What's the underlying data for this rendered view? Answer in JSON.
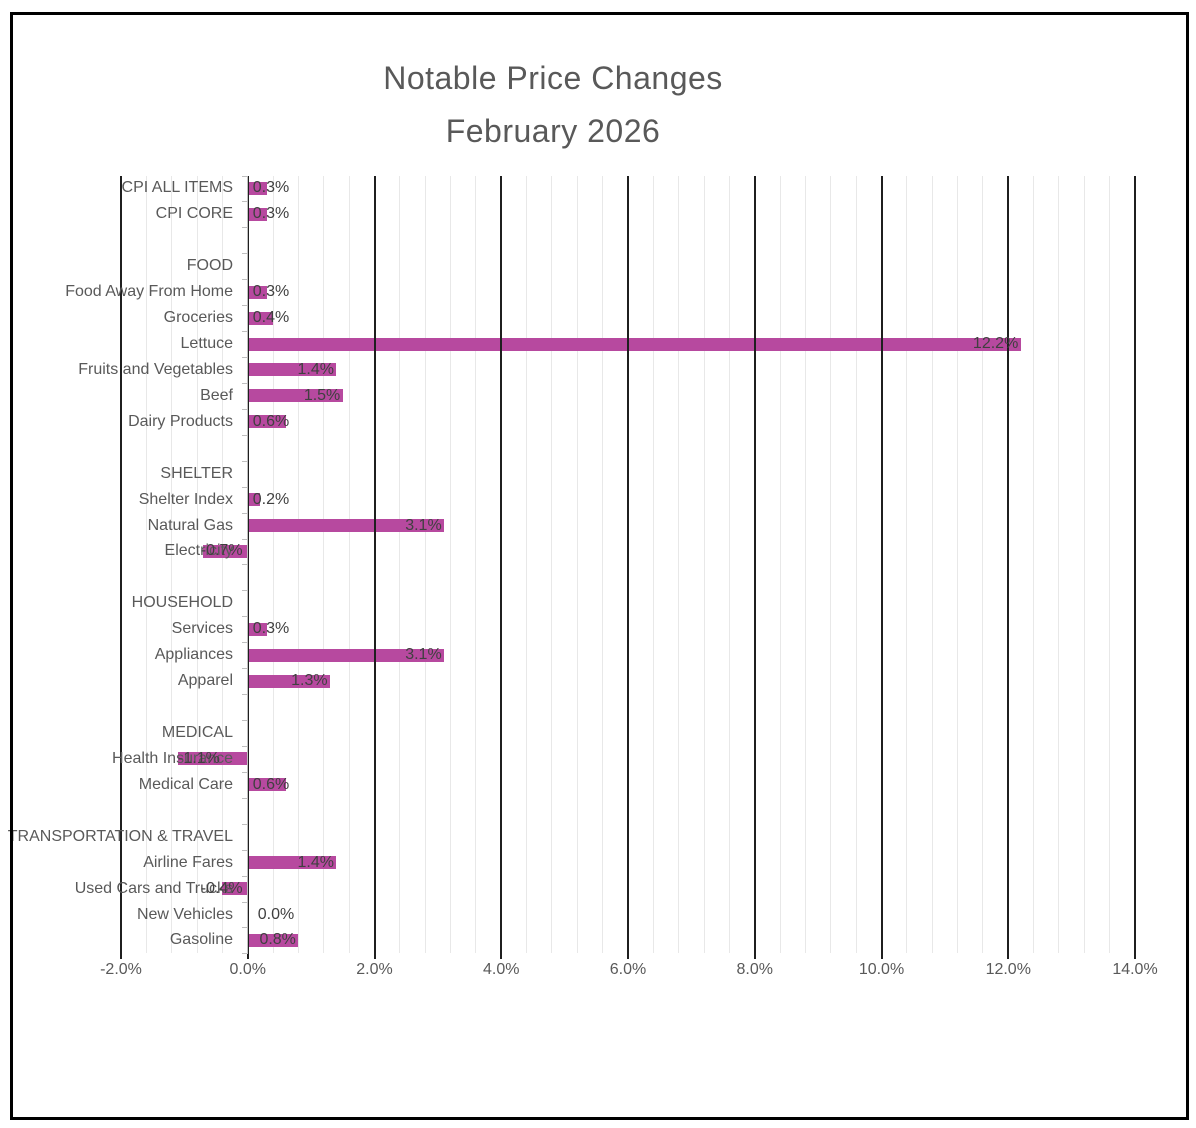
{
  "title": {
    "line1": "Notable Price Changes",
    "line2": "February 2026"
  },
  "colors": {
    "bar": "#b7499f",
    "title_text": "#595959",
    "category_text": "#595959",
    "value_text": "#404040",
    "axis_tick_text": "#595959",
    "major_gridline": "#1f1f1f",
    "minor_gridline": "#e8e8e8",
    "category_axis": "#bfbfbf",
    "frame_border": "#000000"
  },
  "chart_data": {
    "type": "bar",
    "orientation": "horizontal",
    "title": "Notable Price Changes February 2026",
    "xlabel": "",
    "ylabel": "",
    "xlim": [
      -2.0,
      14.0
    ],
    "x_major_unit": 2.0,
    "x_minor_unit": 0.4,
    "grid": "major-and-minor-vertical",
    "legend": "none",
    "x_major_tick_labels": [
      "-2.0%",
      "0.0%",
      "2.0%",
      "4.0%",
      "6.0%",
      "8.0%",
      "10.0%",
      "12.0%",
      "14.0%"
    ],
    "rows": [
      {
        "kind": "item",
        "label": "CPI ALL ITEMS",
        "value": 0.3,
        "display": "0.3%"
      },
      {
        "kind": "item",
        "label": "CPI CORE",
        "value": 0.3,
        "display": "0.3%"
      },
      {
        "kind": "spacer",
        "label": ""
      },
      {
        "kind": "header",
        "label": "FOOD"
      },
      {
        "kind": "item",
        "label": "Food Away From Home",
        "value": 0.3,
        "display": "0.3%"
      },
      {
        "kind": "item",
        "label": "Groceries",
        "value": 0.4,
        "display": "0.4%"
      },
      {
        "kind": "item",
        "label": "Lettuce",
        "value": 12.2,
        "display": "12.2%"
      },
      {
        "kind": "item",
        "label": "Fruits and Vegetables",
        "value": 1.4,
        "display": "1.4%"
      },
      {
        "kind": "item",
        "label": "Beef",
        "value": 1.5,
        "display": "1.5%"
      },
      {
        "kind": "item",
        "label": "Dairy Products",
        "value": 0.6,
        "display": "0.6%"
      },
      {
        "kind": "spacer",
        "label": ""
      },
      {
        "kind": "header",
        "label": "SHELTER"
      },
      {
        "kind": "item",
        "label": "Shelter Index",
        "value": 0.2,
        "display": "0.2%"
      },
      {
        "kind": "item",
        "label": "Natural Gas",
        "value": 3.1,
        "display": "3.1%"
      },
      {
        "kind": "item",
        "label": "Electricity",
        "value": -0.7,
        "display": "-0.7%"
      },
      {
        "kind": "spacer",
        "label": ""
      },
      {
        "kind": "header",
        "label": "HOUSEHOLD"
      },
      {
        "kind": "item",
        "label": "Services",
        "value": 0.3,
        "display": "0.3%"
      },
      {
        "kind": "item",
        "label": "Appliances",
        "value": 3.1,
        "display": "3.1%"
      },
      {
        "kind": "item",
        "label": "Apparel",
        "value": 1.3,
        "display": "1.3%"
      },
      {
        "kind": "spacer",
        "label": ""
      },
      {
        "kind": "header",
        "label": "MEDICAL"
      },
      {
        "kind": "item",
        "label": "Health Insurance",
        "value": -1.1,
        "display": "-1.1%"
      },
      {
        "kind": "item",
        "label": "Medical Care",
        "value": 0.6,
        "display": "0.6%"
      },
      {
        "kind": "spacer",
        "label": ""
      },
      {
        "kind": "header",
        "label": "TRANSPORTATION & TRAVEL"
      },
      {
        "kind": "item",
        "label": "Airline Fares",
        "value": 1.4,
        "display": "1.4%"
      },
      {
        "kind": "item",
        "label": "Used Cars and Trucks",
        "value": -0.4,
        "display": "-0.4%"
      },
      {
        "kind": "item",
        "label": "New Vehicles",
        "value": 0.0,
        "display": "0.0%"
      },
      {
        "kind": "item",
        "label": "Gasoline",
        "value": 0.8,
        "display": "0.8%"
      }
    ]
  }
}
